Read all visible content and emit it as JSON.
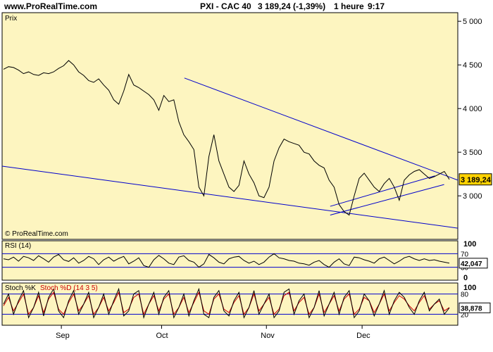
{
  "header": {
    "site": "www.ProRealTime.com",
    "instrument": "PXI - CAC 40",
    "quote": "3 189,24 (-1,39%)",
    "timeframe": "1 heure",
    "time": "9:17"
  },
  "colors": {
    "panel_bg": "#fdf5c0",
    "price_line": "#000000",
    "trend_line": "#0000cc",
    "rsi_line": "#000000",
    "stoch_k": "#000000",
    "stoch_d": "#cc0000",
    "last_badge": "#ffd200"
  },
  "chart_data": [
    {
      "type": "line",
      "panel_label": "Prix",
      "watermark": "© ProRealTime.com",
      "ylim": [
        2550,
        5050
      ],
      "y_ticks": [
        3000,
        3500,
        4000,
        4500,
        5000
      ],
      "y_tick_labels": [
        "3 000",
        "3 500",
        "4 000",
        "4 500",
        "5 000"
      ],
      "x_ticks": [
        "Sep",
        "Oct",
        "Nov",
        "Dec"
      ],
      "last_value_label": "3 189,24",
      "series": [
        {
          "values": [
            4450,
            4480,
            4470,
            4440,
            4400,
            4420,
            4390,
            4380,
            4410,
            4400,
            4420,
            4460,
            4490,
            4550,
            4500,
            4420,
            4380,
            4320,
            4300,
            4340,
            4270,
            4210,
            4100,
            4050,
            4200,
            4390,
            4270,
            4240,
            4200,
            4160,
            4100,
            3980,
            4150,
            4080,
            4100,
            3850,
            3700,
            3620,
            3530,
            3100,
            3000,
            3450,
            3700,
            3400,
            3250,
            3100,
            3050,
            3120,
            3400,
            3250,
            3150,
            3000,
            2980,
            3100,
            3400,
            3550,
            3650,
            3620,
            3600,
            3580,
            3500,
            3480,
            3400,
            3350,
            3320,
            3180,
            3100,
            2900,
            2820,
            2780,
            3000,
            3200,
            3260,
            3180,
            3100,
            3050,
            3140,
            3200,
            3100,
            2950,
            3180,
            3240,
            3280,
            3300,
            3250,
            3200,
            3220,
            3250,
            3280,
            3189
          ]
        }
      ],
      "trendlines": [
        {
          "x": [
            0.4,
            1.0
          ],
          "y": [
            4350,
            3180
          ]
        },
        {
          "x": [
            0.0,
            1.0
          ],
          "y": [
            3340,
            2630
          ]
        },
        {
          "x": [
            0.72,
            0.95
          ],
          "y": [
            2880,
            3230
          ]
        },
        {
          "x": [
            0.72,
            0.97
          ],
          "y": [
            2780,
            3130
          ]
        }
      ]
    },
    {
      "type": "line",
      "panel_label": "RSI (14)",
      "ylim": [
        0,
        100
      ],
      "y_ticks": [
        0,
        100
      ],
      "level_labels": [
        "70",
        "30"
      ],
      "levels": [
        70,
        30
      ],
      "last_value_label": "42,047",
      "series": [
        {
          "values": [
            55,
            52,
            60,
            48,
            62,
            58,
            50,
            64,
            55,
            45,
            60,
            68,
            52,
            47,
            58,
            42,
            50,
            62,
            55,
            38,
            52,
            60,
            48,
            56,
            62,
            40,
            48,
            58,
            35,
            30,
            52,
            65,
            55,
            42,
            38,
            60,
            64,
            50,
            45,
            30,
            40,
            68,
            58,
            45,
            40,
            55,
            60,
            62,
            50,
            42,
            48,
            38,
            45,
            60,
            70,
            58,
            55,
            50,
            48,
            42,
            40,
            36,
            45,
            50,
            38,
            30,
            45,
            55,
            40,
            35,
            60,
            58,
            52,
            48,
            42,
            55,
            60,
            50,
            40,
            48,
            58,
            62,
            55,
            50,
            55,
            50,
            52,
            48,
            45,
            42
          ]
        }
      ]
    },
    {
      "type": "line",
      "panel_label": "Stoch %K",
      "panel_label_2": "Stoch %D (14 3 5)",
      "ylim": [
        0,
        100
      ],
      "y_ticks": [
        100
      ],
      "level_labels": [
        "80",
        "20"
      ],
      "levels": [
        80,
        20
      ],
      "last_value_label": "38,878",
      "series": [
        {
          "values": [
            50,
            80,
            20,
            60,
            90,
            10,
            40,
            85,
            15,
            70,
            95,
            30,
            10,
            60,
            90,
            20,
            50,
            85,
            10,
            40,
            80,
            20,
            60,
            95,
            15,
            30,
            80,
            90,
            10,
            50,
            85,
            20,
            70,
            90,
            10,
            40,
            80,
            15,
            60,
            95,
            20,
            10,
            70,
            90,
            30,
            15,
            60,
            85,
            10,
            40,
            90,
            20,
            50,
            80,
            10,
            30,
            85,
            95,
            20,
            60,
            80,
            10,
            40,
            90,
            15,
            50,
            85,
            20,
            70,
            90,
            10,
            30,
            80,
            60,
            15,
            50,
            90,
            20,
            60,
            85,
            70,
            40,
            20,
            60,
            85,
            30,
            50,
            65,
            20,
            39
          ]
        },
        {
          "values": [
            45,
            70,
            30,
            55,
            80,
            20,
            40,
            75,
            25,
            65,
            85,
            35,
            20,
            55,
            80,
            30,
            50,
            75,
            20,
            40,
            70,
            30,
            55,
            85,
            25,
            35,
            70,
            80,
            20,
            50,
            75,
            30,
            65,
            80,
            20,
            40,
            70,
            25,
            55,
            85,
            30,
            20,
            65,
            80,
            35,
            25,
            55,
            75,
            20,
            40,
            80,
            30,
            50,
            70,
            20,
            35,
            75,
            85,
            30,
            55,
            70,
            20,
            40,
            80,
            25,
            50,
            75,
            30,
            65,
            80,
            20,
            35,
            70,
            60,
            25,
            50,
            80,
            30,
            55,
            75,
            65,
            45,
            30,
            55,
            75,
            35,
            50,
            60,
            30,
            40
          ]
        }
      ]
    }
  ]
}
